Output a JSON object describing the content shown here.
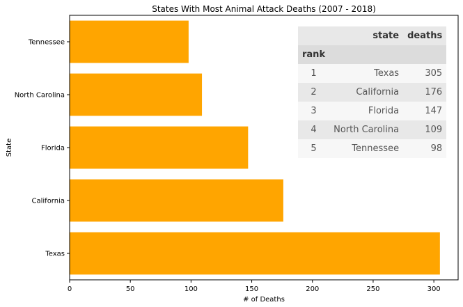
{
  "chart_data": {
    "type": "bar",
    "orientation": "horizontal",
    "title": "States With Most Animal Attack Deaths (2007 - 2018)",
    "xlabel": "# of Deaths",
    "ylabel": "State",
    "categories": [
      "Texas",
      "California",
      "Florida",
      "North Carolina",
      "Tennessee"
    ],
    "values": [
      305,
      176,
      147,
      109,
      98
    ],
    "xlim": [
      0,
      320
    ],
    "xticks": [
      0,
      50,
      100,
      150,
      200,
      250,
      300
    ],
    "bar_color": "#FFA500",
    "grid": false
  },
  "table": {
    "columns": [
      "state",
      "deaths"
    ],
    "index_name": "rank",
    "rows": [
      {
        "rank": "1",
        "state": "Texas",
        "deaths": "305"
      },
      {
        "rank": "2",
        "state": "California",
        "deaths": "176"
      },
      {
        "rank": "3",
        "state": "Florida",
        "deaths": "147"
      },
      {
        "rank": "4",
        "state": "North Carolina",
        "deaths": "109"
      },
      {
        "rank": "5",
        "state": "Tennessee",
        "deaths": "98"
      }
    ]
  }
}
